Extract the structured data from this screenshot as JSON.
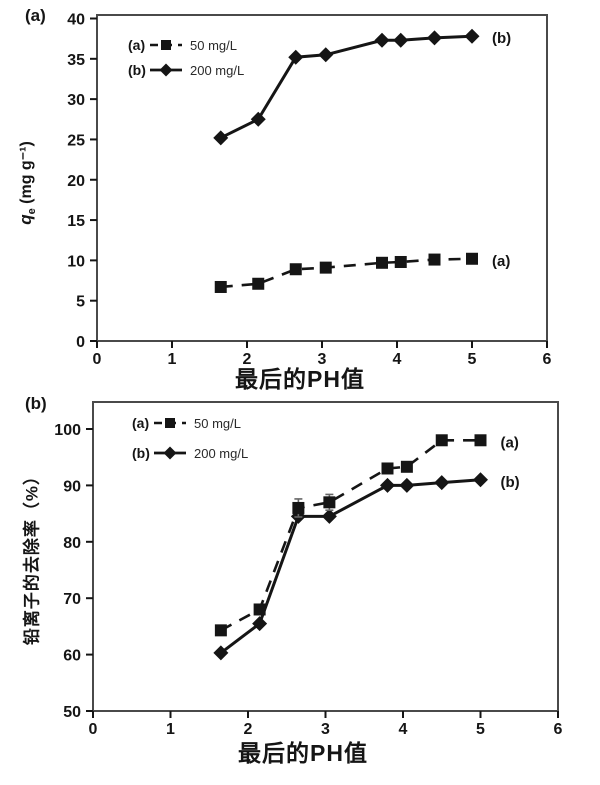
{
  "colors": {
    "ink": "#151515",
    "frame": "#4a4a4a",
    "error_bar": "#666666",
    "background": "#ffffff"
  },
  "chart_data": [
    {
      "type": "line",
      "panel_tag": "(a)",
      "title": "",
      "xlabel": "最后的PH值",
      "ylabel": "qe (mg g⁻¹)",
      "ylabel_parts": {
        "sym": "q",
        "sub": "e",
        "unit": " (mg g⁻¹)"
      },
      "xlim": [
        0,
        6
      ],
      "ylim": [
        0,
        40
      ],
      "xticks": [
        0,
        1,
        2,
        3,
        4,
        5,
        6
      ],
      "yticks": [
        0,
        5,
        10,
        15,
        20,
        25,
        30,
        35,
        40
      ],
      "grid": false,
      "legend_position": "upper-left-inside",
      "x": [
        1.65,
        2.15,
        2.65,
        3.05,
        3.8,
        4.05,
        4.5,
        5.0
      ],
      "series": [
        {
          "name": "50 mg/L",
          "legend_key": "(a)",
          "marker": "square",
          "linestyle": "dashed",
          "values": [
            6.7,
            7.1,
            8.9,
            9.1,
            9.7,
            9.8,
            10.1,
            10.2
          ],
          "end_label": "(a)"
        },
        {
          "name": "200 mg/L",
          "legend_key": "(b)",
          "marker": "diamond",
          "linestyle": "solid",
          "values": [
            25.2,
            27.5,
            35.2,
            35.5,
            37.3,
            37.3,
            37.6,
            37.8
          ],
          "end_label": "(b)"
        }
      ]
    },
    {
      "type": "line",
      "panel_tag": "(b)",
      "title": "",
      "xlabel": "最后的PH值",
      "ylabel": "铅离子的去除率（%）",
      "xlim": [
        0,
        6
      ],
      "ylim": [
        50,
        100
      ],
      "xticks": [
        0,
        1,
        2,
        3,
        4,
        5,
        6
      ],
      "yticks": [
        50,
        60,
        70,
        80,
        90,
        100
      ],
      "grid": false,
      "legend_position": "upper-left-inside",
      "x": [
        1.65,
        2.15,
        2.65,
        3.05,
        3.8,
        4.05,
        4.5,
        5.0
      ],
      "series": [
        {
          "name": "50 mg/L",
          "legend_key": "(a)",
          "marker": "square",
          "linestyle": "dashed",
          "values": [
            64.3,
            68.0,
            86.0,
            87.0,
            93.0,
            93.3,
            98.0,
            98.0
          ],
          "yerr": [
            0.6,
            0.9,
            1.6,
            1.4,
            0.5,
            0.5,
            0.7,
            0.7
          ],
          "end_label": "(a)"
        },
        {
          "name": "200 mg/L",
          "legend_key": "(b)",
          "marker": "diamond",
          "linestyle": "solid",
          "values": [
            60.3,
            65.5,
            84.5,
            84.5,
            90.0,
            90.0,
            90.5,
            91.0
          ],
          "end_label": "(b)"
        }
      ]
    }
  ]
}
